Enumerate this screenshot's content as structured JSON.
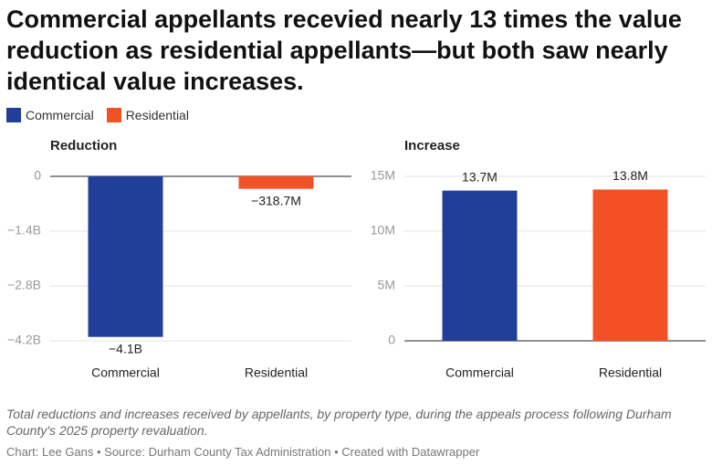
{
  "title": "Commercial appellants recevied nearly 13 times the value reduction as residential appellants—but both saw nearly identical value increases.",
  "legend": [
    {
      "name": "Commercial",
      "color": "#213f99"
    },
    {
      "name": "Residential",
      "color": "#f15125"
    }
  ],
  "caption": "Total reductions and increases received by appellants, by property type, during the appeals process following Durham County's 2025 property revaluation.",
  "credit": "Chart: Lee Gans • Source: Durham County Tax Administration • Created with Datawrapper",
  "chart_data": [
    {
      "type": "bar",
      "title": "Reduction",
      "categories": [
        "Commercial",
        "Residential"
      ],
      "values": [
        -4100000000,
        -318700000
      ],
      "value_labels": [
        "−4.1B",
        "−318.7M"
      ],
      "colors": [
        "#213f99",
        "#f15125"
      ],
      "ylim": [
        -4200000000,
        0
      ],
      "yticks": [
        0,
        {
          "value": -1400000000,
          "label": "−1.4B"
        },
        {
          "value": -2800000000,
          "label": "−2.8B"
        },
        {
          "value": -4200000000,
          "label": "−4.2B"
        }
      ],
      "grid": true
    },
    {
      "type": "bar",
      "title": "Increase",
      "categories": [
        "Commercial",
        "Residential"
      ],
      "values": [
        13700000,
        13800000
      ],
      "value_labels": [
        "13.7M",
        "13.8M"
      ],
      "colors": [
        "#213f99",
        "#f15125"
      ],
      "ylim": [
        0,
        15000000
      ],
      "yticks": [
        0,
        {
          "value": 5000000,
          "label": "5M"
        },
        {
          "value": 10000000,
          "label": "10M"
        },
        {
          "value": 15000000,
          "label": "15M"
        }
      ],
      "grid": true
    }
  ]
}
